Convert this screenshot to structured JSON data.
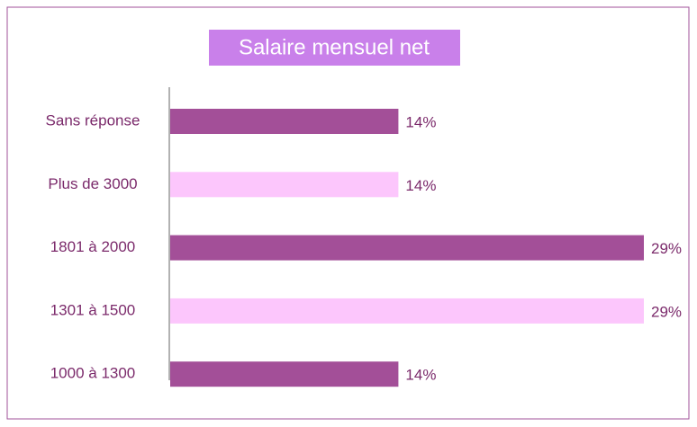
{
  "chart_data": {
    "type": "bar",
    "orientation": "horizontal",
    "title": "Salaire mensuel net",
    "categories": [
      "Sans réponse",
      "Plus de 3000",
      "1801 à 2000",
      "1301 à 1500",
      "1000 à 1300"
    ],
    "values": [
      14,
      14,
      29,
      29,
      14
    ],
    "value_labels": [
      "14%",
      "14%",
      "29%",
      "29%",
      "14%"
    ],
    "colors": [
      "#a34f98",
      "#fcc6fc",
      "#a34f98",
      "#fcc6fc",
      "#a34f98"
    ]
  }
}
